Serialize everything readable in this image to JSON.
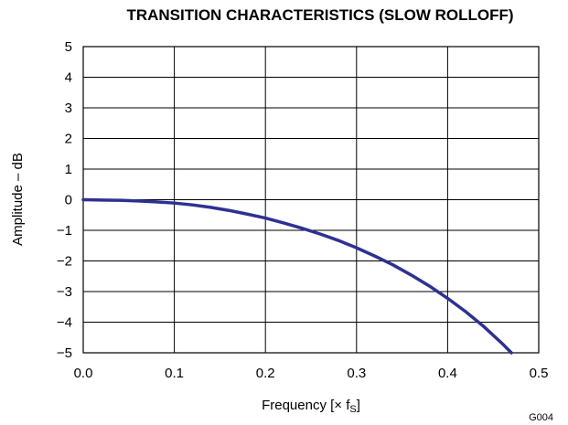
{
  "chart_data": {
    "type": "line",
    "title": "TRANSITION CHARACTERISTICS (SLOW ROLLOFF)",
    "xlabel_main": "Frequency [",
    "xlabel_times": "×",
    "xlabel_var": " f",
    "xlabel_sub": "S",
    "xlabel_close": "]",
    "ylabel": "Amplitude – dB",
    "figure_id": "G004",
    "xlim": [
      0.0,
      0.5
    ],
    "ylim": [
      -5,
      5
    ],
    "x_ticks": [
      "0.0",
      "0.1",
      "0.2",
      "0.3",
      "0.4",
      "0.5"
    ],
    "y_ticks": [
      "5",
      "4",
      "3",
      "2",
      "1",
      "0",
      "−1",
      "−2",
      "−3",
      "−4",
      "−5"
    ],
    "grid": true,
    "line_color": "#2e3192",
    "series": [
      {
        "x": [
          0.0,
          0.02,
          0.04,
          0.06,
          0.08,
          0.1,
          0.12,
          0.14,
          0.16,
          0.18,
          0.2,
          0.22,
          0.24,
          0.26,
          0.28,
          0.3,
          0.32,
          0.34,
          0.36,
          0.38,
          0.4,
          0.42,
          0.44,
          0.46,
          0.47
        ],
        "y": [
          0.0,
          -0.01,
          -0.02,
          -0.04,
          -0.07,
          -0.11,
          -0.17,
          -0.25,
          -0.35,
          -0.47,
          -0.6,
          -0.76,
          -0.93,
          -1.12,
          -1.33,
          -1.57,
          -1.84,
          -2.13,
          -2.46,
          -2.82,
          -3.22,
          -3.66,
          -4.15,
          -4.7,
          -5.0
        ]
      }
    ]
  }
}
